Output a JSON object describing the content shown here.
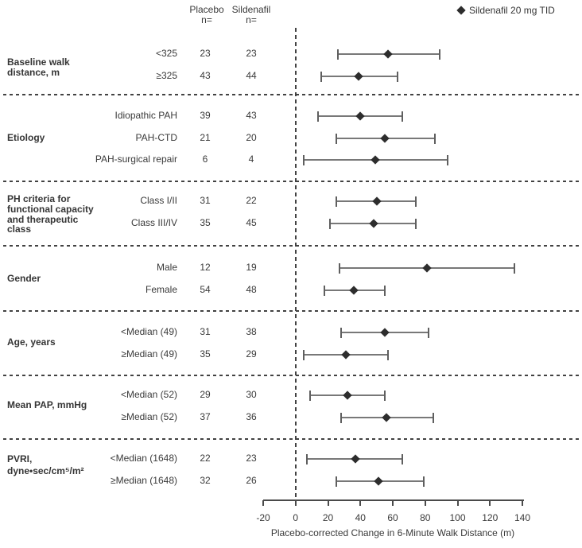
{
  "legend": {
    "label": "Sildenafil 20 mg TID"
  },
  "chart_data": {
    "type": "forest",
    "legend": "Sildenafil 20 mg TID",
    "xlabel": "Placebo-corrected Change in 6-Minute Walk Distance (m)",
    "xticks": [
      -20,
      0,
      20,
      40,
      60,
      80,
      100,
      120,
      140
    ],
    "xlim": [
      -20,
      140
    ],
    "reference_line_x": 0,
    "columns": {
      "placebo_header": "Placebo",
      "sildenafil_header": "Sildenafil",
      "n_label": "n="
    },
    "colors": {
      "marker": "#2d2d2d",
      "ci_line": "#787878",
      "text": "#353535"
    },
    "groups": [
      {
        "label_lines": [
          "Baseline walk",
          "distance, m"
        ],
        "rows": [
          {
            "subgroup": "<325",
            "placebo_n": 23,
            "sildenafil_n": 23,
            "estimate": 57,
            "ci_low": 26,
            "ci_high": 89
          },
          {
            "subgroup": "≥325",
            "placebo_n": 43,
            "sildenafil_n": 44,
            "estimate": 39,
            "ci_low": 16,
            "ci_high": 63
          }
        ]
      },
      {
        "label_lines": [
          "Etiology"
        ],
        "rows": [
          {
            "subgroup": "Idiopathic PAH",
            "placebo_n": 39,
            "sildenafil_n": 43,
            "estimate": 40,
            "ci_low": 14,
            "ci_high": 66
          },
          {
            "subgroup": "PAH-CTD",
            "placebo_n": 21,
            "sildenafil_n": 20,
            "estimate": 55,
            "ci_low": 25,
            "ci_high": 86
          },
          {
            "subgroup": "PAH-surgical repair",
            "placebo_n": 6,
            "sildenafil_n": 4,
            "estimate": 49,
            "ci_low": 5,
            "ci_high": 94
          }
        ]
      },
      {
        "label_lines": [
          "PH criteria for",
          "functional capacity",
          "and therapeutic",
          "class"
        ],
        "rows": [
          {
            "subgroup": "Class I/II",
            "placebo_n": 31,
            "sildenafil_n": 22,
            "estimate": 50,
            "ci_low": 25,
            "ci_high": 74
          },
          {
            "subgroup": "Class III/IV",
            "placebo_n": 35,
            "sildenafil_n": 45,
            "estimate": 48,
            "ci_low": 21,
            "ci_high": 74
          }
        ]
      },
      {
        "label_lines": [
          "Gender"
        ],
        "rows": [
          {
            "subgroup": "Male",
            "placebo_n": 12,
            "sildenafil_n": 19,
            "estimate": 81,
            "ci_low": 27,
            "ci_high": 135
          },
          {
            "subgroup": "Female",
            "placebo_n": 54,
            "sildenafil_n": 48,
            "estimate": 36,
            "ci_low": 18,
            "ci_high": 55
          }
        ]
      },
      {
        "label_lines": [
          "Age, years"
        ],
        "rows": [
          {
            "subgroup": "<Median (49)",
            "placebo_n": 31,
            "sildenafil_n": 38,
            "estimate": 55,
            "ci_low": 28,
            "ci_high": 82
          },
          {
            "subgroup": "≥Median (49)",
            "placebo_n": 35,
            "sildenafil_n": 29,
            "estimate": 31,
            "ci_low": 5,
            "ci_high": 57
          }
        ]
      },
      {
        "label_lines": [
          "Mean PAP, mmHg"
        ],
        "rows": [
          {
            "subgroup": "<Median (52)",
            "placebo_n": 29,
            "sildenafil_n": 30,
            "estimate": 32,
            "ci_low": 9,
            "ci_high": 55
          },
          {
            "subgroup": "≥Median (52)",
            "placebo_n": 37,
            "sildenafil_n": 36,
            "estimate": 56,
            "ci_low": 28,
            "ci_high": 85
          }
        ]
      },
      {
        "label_lines": [
          "PVRI,",
          "dyne•sec/cm⁵/m²"
        ],
        "rows": [
          {
            "subgroup": "<Median (1648)",
            "placebo_n": 22,
            "sildenafil_n": 23,
            "estimate": 37,
            "ci_low": 7,
            "ci_high": 66
          },
          {
            "subgroup": "≥Median (1648)",
            "placebo_n": 32,
            "sildenafil_n": 26,
            "estimate": 51,
            "ci_low": 25,
            "ci_high": 79
          }
        ]
      }
    ]
  }
}
